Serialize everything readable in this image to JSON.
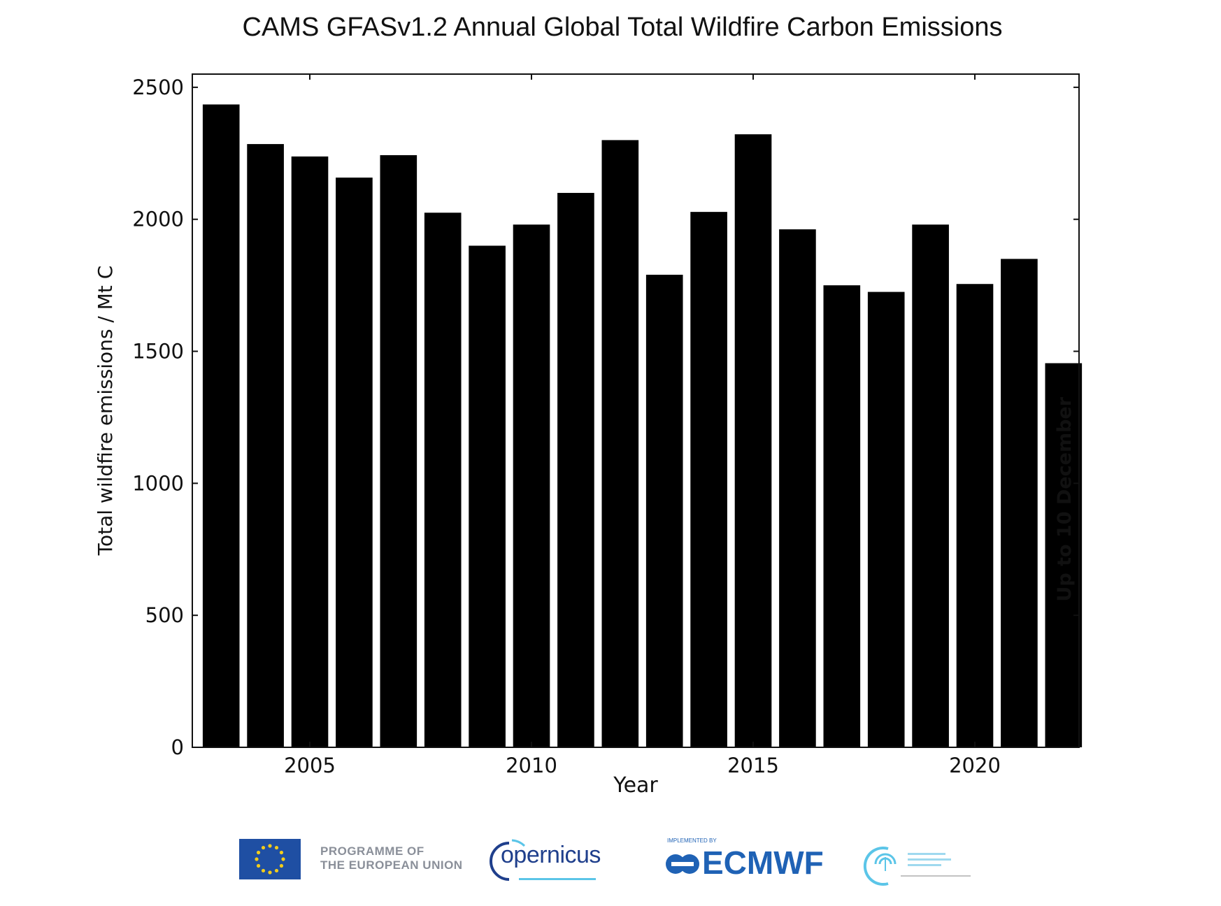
{
  "chart_data": {
    "type": "bar",
    "title": "CAMS GFASv1.2 Annual Global Total Wildfire Carbon Emissions",
    "xlabel": "Year",
    "ylabel": "Total wildfire emissions / Mt C",
    "x": [
      2003,
      2004,
      2005,
      2006,
      2007,
      2008,
      2009,
      2010,
      2011,
      2012,
      2013,
      2014,
      2015,
      2016,
      2017,
      2018,
      2019,
      2020,
      2021,
      2022
    ],
    "values": [
      2435,
      2285,
      2238,
      2158,
      2243,
      2025,
      1900,
      1980,
      2100,
      2300,
      1790,
      2028,
      2322,
      1962,
      1750,
      1725,
      1980,
      1755,
      1850,
      1455
    ],
    "xlim": [
      2002.35,
      2022.35
    ],
    "ylim": [
      0,
      2550
    ],
    "xticks": [
      2005,
      2010,
      2015,
      2020
    ],
    "yticks": [
      0,
      500,
      1000,
      1500,
      2000,
      2500
    ],
    "grid": false,
    "bar_color": "#000000",
    "annotation": {
      "x": 2022,
      "text": "Up to 10 December"
    }
  },
  "logos": {
    "eu_programme": {
      "line1": "PROGRAMME OF",
      "line2": "THE EUROPEAN UNION"
    },
    "copernicus": {
      "name": "opernicus"
    },
    "ecmwf": {
      "tag": "IMPLEMENTED BY",
      "name": "ECMWF"
    },
    "colors": {
      "eu_blue": "#1f4fa3",
      "eu_gold": "#f2cc1b",
      "copernicus_blue": "#1f3f8c",
      "ecmwf_blue": "#1f62b5",
      "cams_cyan": "#5bc5e8"
    }
  }
}
